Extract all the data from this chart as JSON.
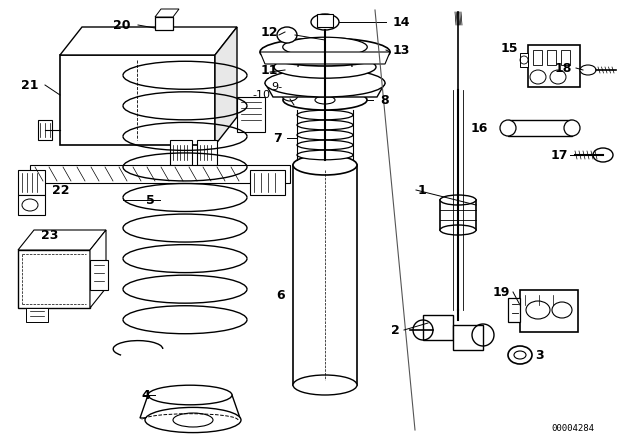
{
  "bg_color": "#ffffff",
  "diagram_id": "00004284",
  "fig_width": 6.4,
  "fig_height": 4.48,
  "dpi": 100
}
